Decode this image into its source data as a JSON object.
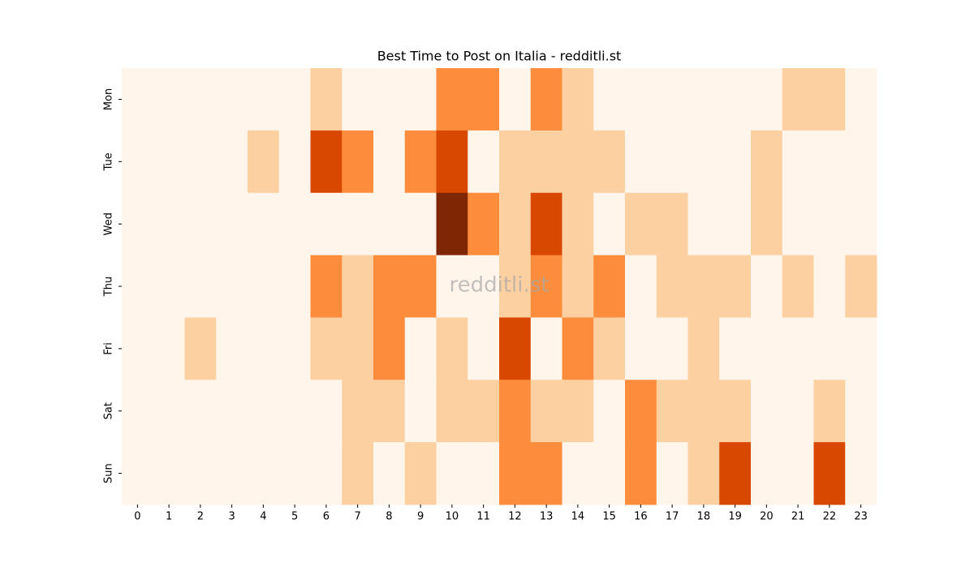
{
  "chart_data": {
    "type": "heatmap",
    "title": "Best Time to Post on Italia - redditli.st",
    "watermark": "redditli.st",
    "x": [
      0,
      1,
      2,
      3,
      4,
      5,
      6,
      7,
      8,
      9,
      10,
      11,
      12,
      13,
      14,
      15,
      16,
      17,
      18,
      19,
      20,
      21,
      22,
      23
    ],
    "y": [
      "Mon",
      "Tue",
      "Wed",
      "Thu",
      "Fri",
      "Sat",
      "Sun"
    ],
    "z": [
      [
        0,
        0,
        0,
        0,
        0,
        0,
        1,
        0,
        0,
        0,
        2,
        2,
        0,
        2,
        1,
        0,
        0,
        0,
        0,
        0,
        0,
        1,
        1,
        0
      ],
      [
        0,
        0,
        0,
        0,
        1,
        0,
        3,
        2,
        0,
        2,
        3,
        0,
        1,
        1,
        1,
        1,
        0,
        0,
        0,
        0,
        1,
        0,
        0,
        0
      ],
      [
        0,
        0,
        0,
        0,
        0,
        0,
        0,
        0,
        0,
        0,
        4,
        2,
        1,
        3,
        1,
        0,
        1,
        1,
        0,
        0,
        1,
        0,
        0,
        0
      ],
      [
        0,
        0,
        0,
        0,
        0,
        0,
        2,
        1,
        2,
        2,
        0,
        0,
        1,
        2,
        1,
        2,
        0,
        1,
        1,
        1,
        0,
        1,
        0,
        1
      ],
      [
        0,
        0,
        1,
        0,
        0,
        0,
        1,
        1,
        2,
        0,
        1,
        0,
        3,
        0,
        2,
        1,
        0,
        0,
        1,
        0,
        0,
        0,
        0,
        0
      ],
      [
        0,
        0,
        0,
        0,
        0,
        0,
        0,
        1,
        1,
        0,
        1,
        1,
        2,
        1,
        1,
        0,
        2,
        1,
        1,
        1,
        0,
        0,
        1,
        0
      ],
      [
        0,
        0,
        0,
        0,
        0,
        0,
        0,
        1,
        0,
        1,
        0,
        0,
        2,
        2,
        0,
        0,
        2,
        0,
        1,
        3,
        0,
        0,
        3,
        0
      ]
    ],
    "color_scale": [
      "#fff5eb",
      "#fdd0a2",
      "#fd8d3c",
      "#d94801",
      "#7f2704"
    ]
  }
}
